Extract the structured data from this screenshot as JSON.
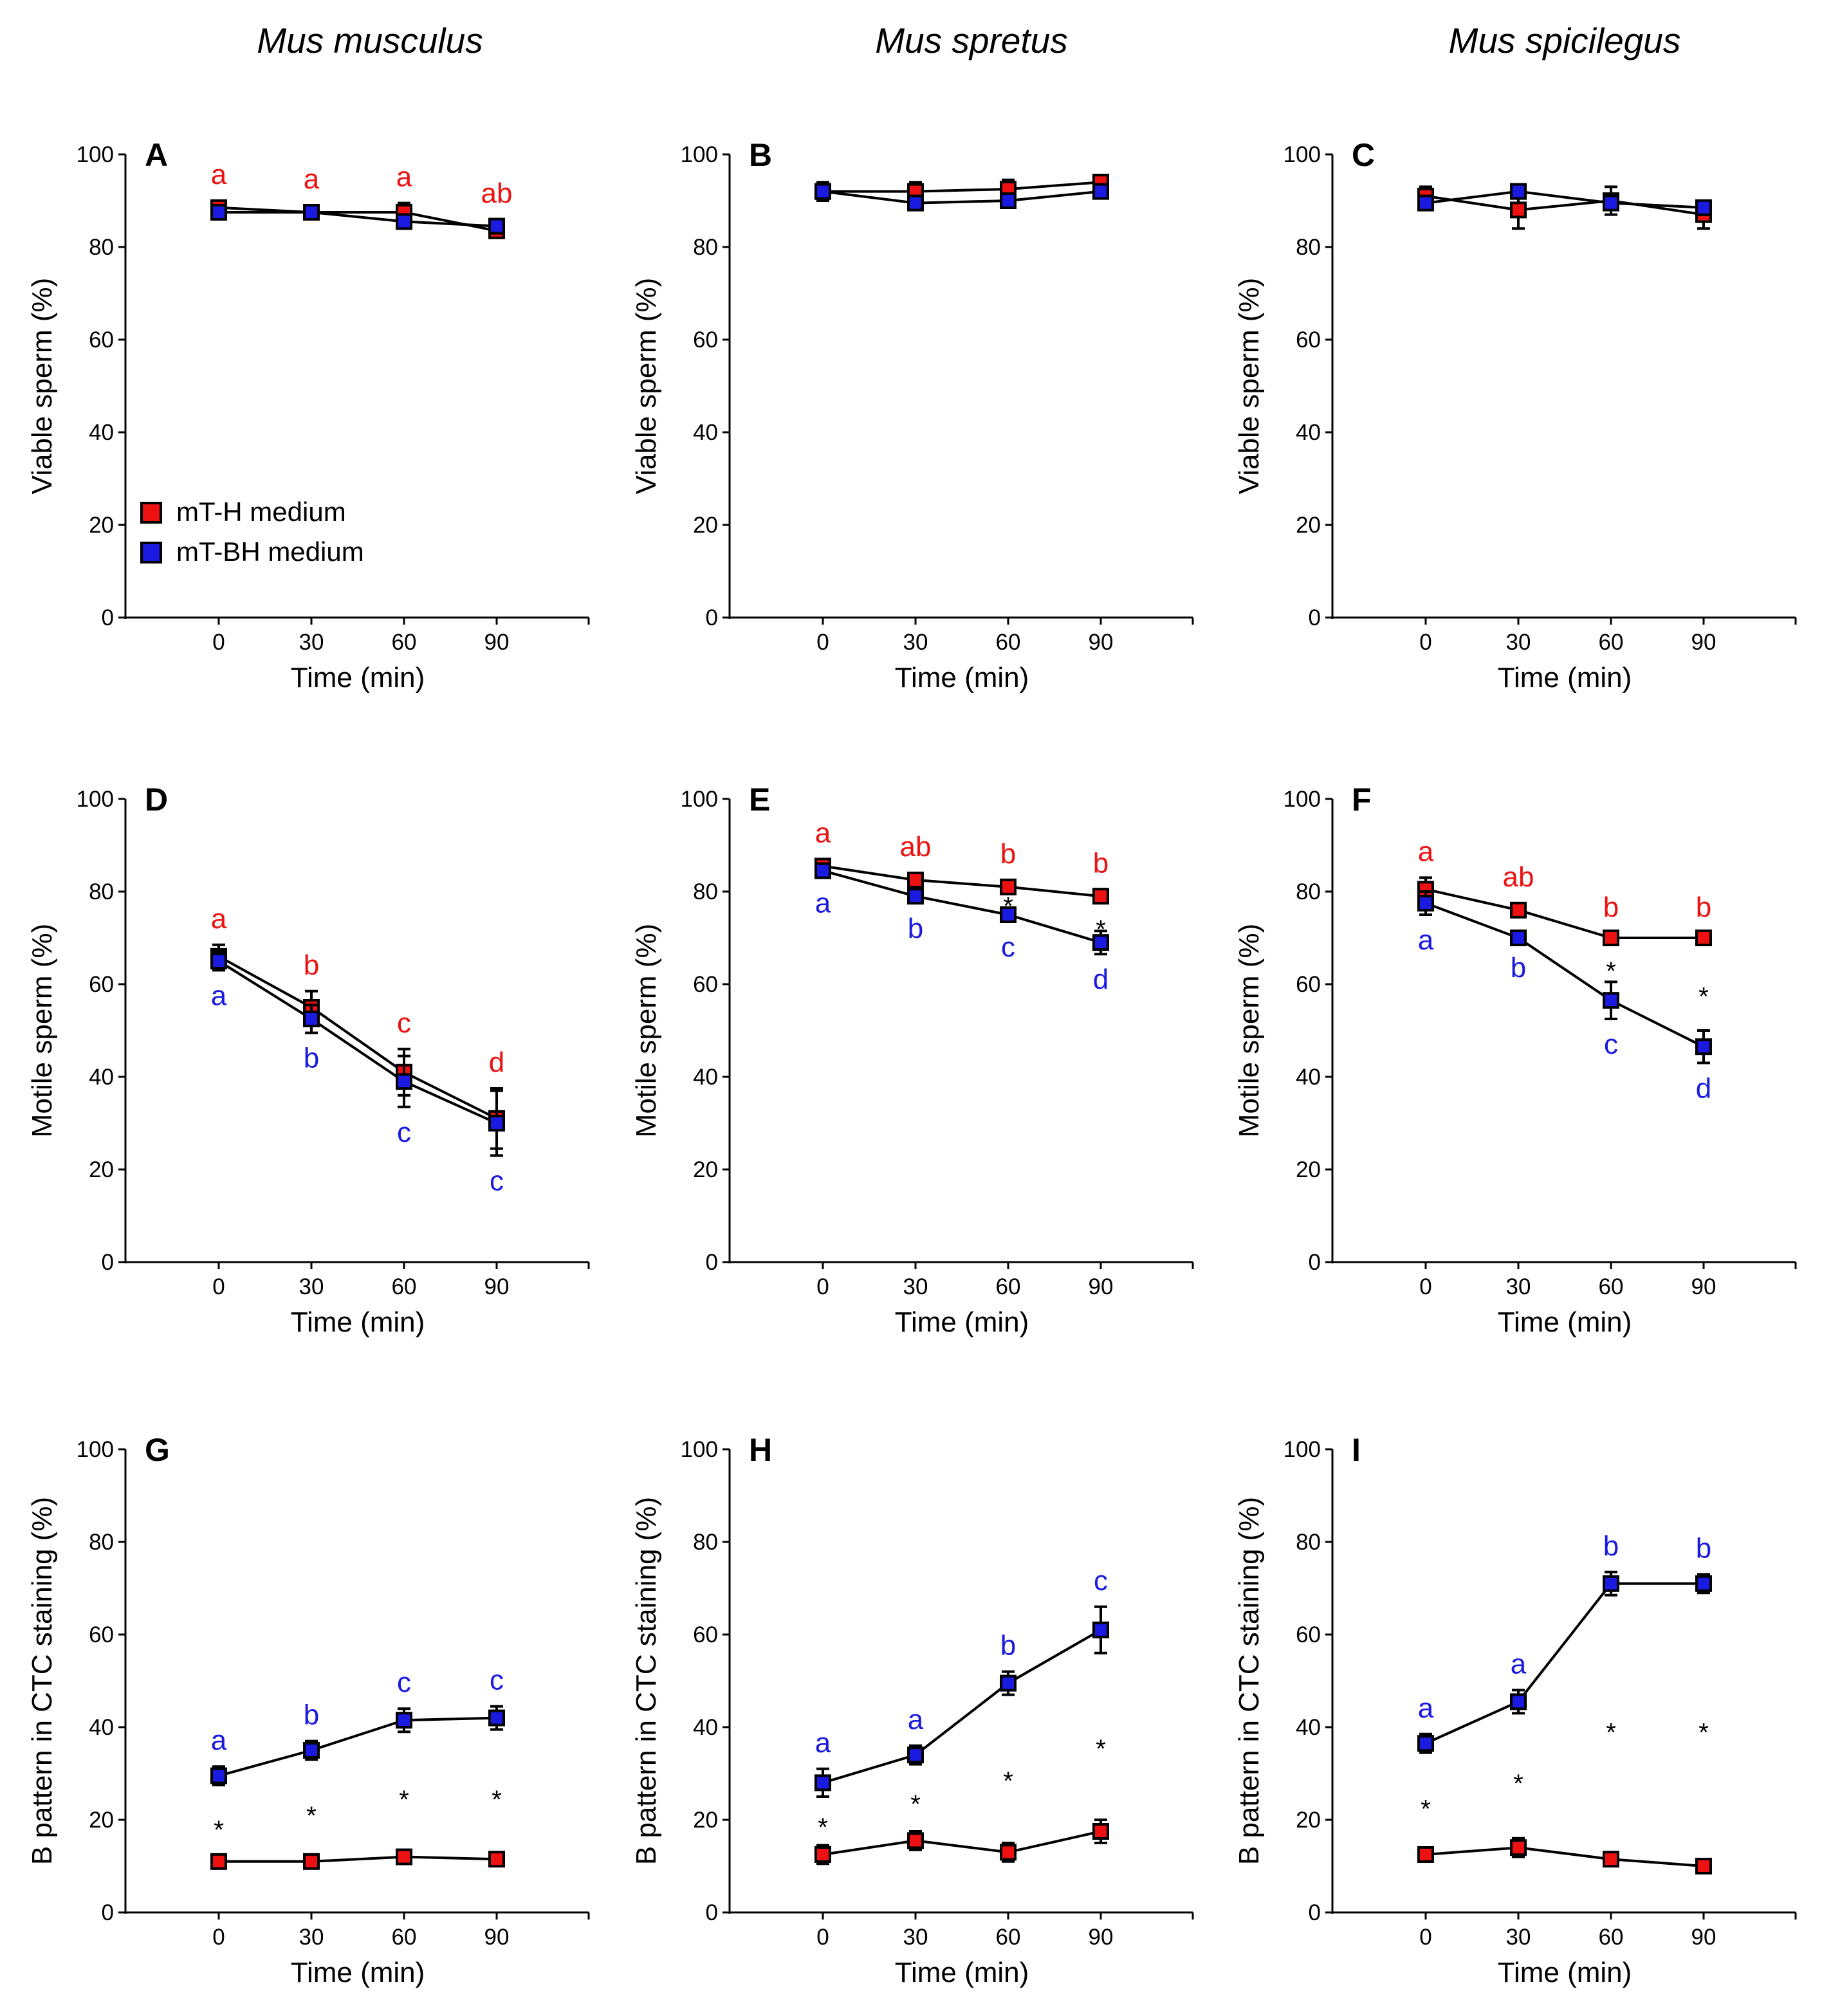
{
  "colors": {
    "mTH": "#ee1111",
    "mTBH": "#1a1ae0",
    "axis": "#000000"
  },
  "species": [
    "Mus musculus",
    "Mus spretus",
    "Mus spicilegus"
  ],
  "legend": {
    "mTH": "mT-H medium",
    "mTBH": "mT-BH medium"
  },
  "chart_data": [
    {
      "panel": "A",
      "type": "line",
      "title": "Mus musculus",
      "xlabel": "Time (min)",
      "ylabel": "Viable sperm  (%)",
      "x": [
        0,
        30,
        60,
        90
      ],
      "xlim": [
        -30,
        120
      ],
      "ylim": [
        0,
        100
      ],
      "yticks": [
        0,
        20,
        40,
        60,
        80,
        100
      ],
      "series": [
        {
          "name": "mT-H medium",
          "values": [
            88.5,
            87.5,
            87.5,
            83.5
          ],
          "errors": [
            1.5,
            1.5,
            2.0,
            1.5
          ],
          "letters": [
            "a",
            "a",
            "a",
            "ab"
          ]
        },
        {
          "name": "mT-BH medium",
          "values": [
            87.5,
            87.5,
            85.5,
            84.5
          ],
          "errors": [
            1.0,
            1.5,
            1.5,
            1.5
          ],
          "letters": []
        }
      ],
      "stars": []
    },
    {
      "panel": "B",
      "type": "line",
      "title": "Mus spretus",
      "xlabel": "Time (min)",
      "ylabel": "Viable sperm (%)",
      "x": [
        0,
        30,
        60,
        90
      ],
      "xlim": [
        -30,
        120
      ],
      "ylim": [
        0,
        100
      ],
      "yticks": [
        0,
        20,
        40,
        60,
        80,
        100
      ],
      "series": [
        {
          "name": "mT-H medium",
          "values": [
            92.0,
            92.0,
            92.5,
            94.0
          ],
          "errors": [
            2.0,
            2.0,
            2.0,
            1.5
          ],
          "letters": []
        },
        {
          "name": "mT-BH medium",
          "values": [
            92.0,
            89.5,
            90.0,
            92.0
          ],
          "errors": [
            1.5,
            1.5,
            1.5,
            1.5
          ],
          "letters": []
        }
      ],
      "stars": []
    },
    {
      "panel": "C",
      "type": "line",
      "title": "Mus spicilegus",
      "xlabel": "Time (min)",
      "ylabel": "Viable sperm (%)",
      "x": [
        0,
        30,
        60,
        90
      ],
      "xlim": [
        -30,
        120
      ],
      "ylim": [
        0,
        100
      ],
      "yticks": [
        0,
        20,
        40,
        60,
        80,
        100
      ],
      "series": [
        {
          "name": "mT-H medium",
          "values": [
            91.0,
            88.0,
            90.0,
            87.0
          ],
          "errors": [
            2.0,
            4.0,
            3.0,
            3.0
          ],
          "letters": []
        },
        {
          "name": "mT-BH medium",
          "values": [
            89.5,
            92.0,
            89.5,
            88.5
          ],
          "errors": [
            1.5,
            1.5,
            1.5,
            1.5
          ],
          "letters": []
        }
      ],
      "stars": []
    },
    {
      "panel": "D",
      "type": "line",
      "title": "",
      "xlabel": "Time (min)",
      "ylabel": "Motile sperm (%)",
      "x": [
        0,
        30,
        60,
        90
      ],
      "xlim": [
        -30,
        120
      ],
      "ylim": [
        0,
        100
      ],
      "yticks": [
        0,
        20,
        40,
        60,
        80,
        100
      ],
      "series": [
        {
          "name": "mT-H medium",
          "values": [
            66.0,
            55.0,
            41.0,
            31.0
          ],
          "errors": [
            2.5,
            3.5,
            5.0,
            6.5
          ],
          "letters": [
            "a",
            "b",
            "c",
            "d"
          ]
        },
        {
          "name": "mT-BH medium",
          "values": [
            65.0,
            52.5,
            39.0,
            30.0
          ],
          "errors": [
            2.0,
            3.0,
            5.5,
            7.0
          ],
          "letters": [
            "a",
            "b",
            "c",
            "c"
          ]
        }
      ],
      "stars": []
    },
    {
      "panel": "E",
      "type": "line",
      "title": "",
      "xlabel": "Time (min)",
      "ylabel": "Motile sperm (%)",
      "x": [
        0,
        30,
        60,
        90
      ],
      "xlim": [
        -30,
        120
      ],
      "ylim": [
        0,
        100
      ],
      "yticks": [
        0,
        20,
        40,
        60,
        80,
        100
      ],
      "series": [
        {
          "name": "mT-H medium",
          "values": [
            85.5,
            82.5,
            81.0,
            79.0
          ],
          "errors": [
            1.5,
            1.5,
            1.5,
            1.5
          ],
          "letters": [
            "a",
            "ab",
            "b",
            "b"
          ]
        },
        {
          "name": "mT-BH medium",
          "values": [
            84.5,
            79.0,
            75.0,
            69.0
          ],
          "errors": [
            1.5,
            1.5,
            1.5,
            2.5
          ],
          "letters": [
            "a",
            "b",
            "c",
            "d"
          ]
        }
      ],
      "stars": [
        {
          "x": 60,
          "y": 77.5
        },
        {
          "x": 90,
          "y": 72.5
        }
      ]
    },
    {
      "panel": "F",
      "type": "line",
      "title": "",
      "xlabel": "Time (min)",
      "ylabel": "Motile sperm (%)",
      "x": [
        0,
        30,
        60,
        90
      ],
      "xlim": [
        -30,
        120
      ],
      "ylim": [
        0,
        100
      ],
      "yticks": [
        0,
        20,
        40,
        60,
        80,
        100
      ],
      "series": [
        {
          "name": "mT-H medium",
          "values": [
            80.5,
            76.0,
            70.0,
            70.0
          ],
          "errors": [
            2.5,
            1.5,
            1.0,
            1.0
          ],
          "letters": [
            "a",
            "ab",
            "b",
            "b"
          ]
        },
        {
          "name": "mT-BH medium",
          "values": [
            77.5,
            70.0,
            56.5,
            46.5
          ],
          "errors": [
            2.5,
            1.0,
            4.0,
            3.5
          ],
          "letters": [
            "a",
            "b",
            "c",
            "d"
          ]
        }
      ],
      "stars": [
        {
          "x": 60,
          "y": 63.5
        },
        {
          "x": 90,
          "y": 58.0
        }
      ]
    },
    {
      "panel": "G",
      "type": "line",
      "title": "",
      "xlabel": "Time (min)",
      "ylabel": "B pattern in CTC staining (%)",
      "x": [
        0,
        30,
        60,
        90
      ],
      "xlim": [
        -30,
        120
      ],
      "ylim": [
        0,
        100
      ],
      "yticks": [
        0,
        20,
        40,
        60,
        80,
        100
      ],
      "series": [
        {
          "name": "mT-H medium",
          "values": [
            11.0,
            11.0,
            12.0,
            11.5
          ],
          "errors": [
            1.5,
            1.0,
            1.5,
            1.5
          ],
          "letters": []
        },
        {
          "name": "mT-BH medium",
          "values": [
            29.5,
            35.0,
            41.5,
            42.0
          ],
          "errors": [
            2.0,
            2.0,
            2.5,
            2.5
          ],
          "letters": [
            "a",
            "b",
            "c",
            "c"
          ]
        }
      ],
      "stars": [
        {
          "x": 0,
          "y": 18.5
        },
        {
          "x": 30,
          "y": 21.5
        },
        {
          "x": 60,
          "y": 25.0
        },
        {
          "x": 90,
          "y": 25.0
        }
      ]
    },
    {
      "panel": "H",
      "type": "line",
      "title": "",
      "xlabel": "Time (min)",
      "ylabel": "B pattern in CTC staining (%)",
      "x": [
        0,
        30,
        60,
        90
      ],
      "xlim": [
        -30,
        120
      ],
      "ylim": [
        0,
        100
      ],
      "yticks": [
        0,
        20,
        40,
        60,
        80,
        100
      ],
      "series": [
        {
          "name": "mT-H medium",
          "values": [
            12.5,
            15.5,
            13.0,
            17.5
          ],
          "errors": [
            2.0,
            2.0,
            2.0,
            2.5
          ],
          "letters": []
        },
        {
          "name": "mT-BH medium",
          "values": [
            28.0,
            34.0,
            49.5,
            61.0
          ],
          "errors": [
            3.0,
            2.0,
            2.5,
            5.0
          ],
          "letters": [
            "a",
            "a",
            "b",
            "c"
          ]
        }
      ],
      "stars": [
        {
          "x": 0,
          "y": 19.0
        },
        {
          "x": 30,
          "y": 24.0
        },
        {
          "x": 60,
          "y": 29.0
        },
        {
          "x": 90,
          "y": 36.0
        }
      ]
    },
    {
      "panel": "I",
      "type": "line",
      "title": "",
      "xlabel": "Time (min)",
      "ylabel": "B pattern in CTC staining (%)",
      "x": [
        0,
        30,
        60,
        90
      ],
      "xlim": [
        -30,
        120
      ],
      "ylim": [
        0,
        100
      ],
      "yticks": [
        0,
        20,
        40,
        60,
        80,
        100
      ],
      "series": [
        {
          "name": "mT-H medium",
          "values": [
            12.5,
            14.0,
            11.5,
            10.0
          ],
          "errors": [
            1.0,
            2.0,
            1.5,
            1.0
          ],
          "letters": []
        },
        {
          "name": "mT-BH medium",
          "values": [
            36.5,
            45.5,
            71.0,
            71.0
          ],
          "errors": [
            2.0,
            2.5,
            2.5,
            2.0
          ],
          "letters": [
            "a",
            "a",
            "b",
            "b"
          ]
        }
      ],
      "stars": [
        {
          "x": 0,
          "y": 23.0
        },
        {
          "x": 30,
          "y": 28.5
        },
        {
          "x": 60,
          "y": 39.5
        },
        {
          "x": 90,
          "y": 39.5
        }
      ]
    }
  ]
}
